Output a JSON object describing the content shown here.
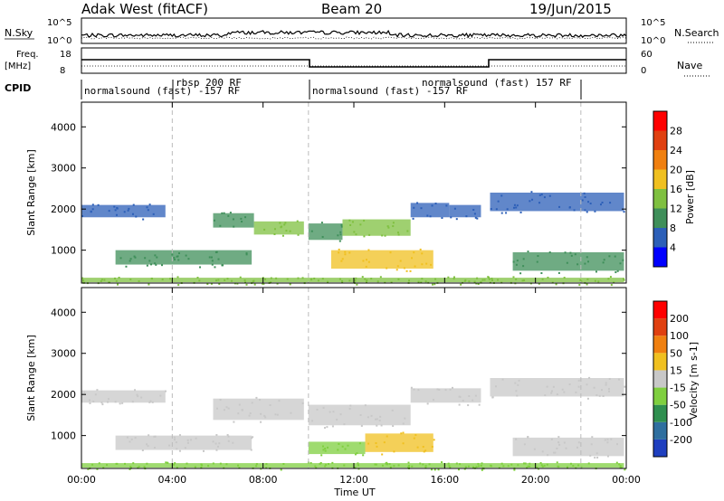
{
  "header": {
    "radar": "Adak West (fitACF)",
    "beam": "Beam 20",
    "date": "19/Jun/2015"
  },
  "strips": {
    "nsky_label": "N.Sky",
    "nsky_ticks": [
      "10^5",
      "10^0"
    ],
    "nsearch_label": "N.Search",
    "freq_label_1": "Freq.",
    "freq_label_2": "[MHz]",
    "freq_ticks": [
      "18",
      "8"
    ],
    "nave_ticks": [
      "60",
      "0"
    ],
    "nave_label": "Nave",
    "cpid_label": "CPID"
  },
  "cpid_labels": [
    "normalsound (fast) -157 RF",
    "rbsp 200 RF",
    "normalsound (fast) -157 RF",
    "normalsound (fast) 157 RF"
  ],
  "chart_data": [
    {
      "type": "heatmap",
      "name": "power",
      "ylabel": "Slant Range [km]",
      "xlabel": "Time UT",
      "xticks": [
        "00:00",
        "04:00",
        "08:00",
        "12:00",
        "16:00",
        "20:00",
        "00:00"
      ],
      "yticks": [
        1000,
        2000,
        3000,
        4000
      ],
      "ylim": [
        200,
        4600
      ],
      "colorbar_label": "Power [dB]",
      "colorbar_ticks": [
        "4",
        "8",
        "12",
        "16",
        "20",
        "24",
        "28"
      ],
      "colorbar_colors": [
        "#0000ff",
        "#2c5fb8",
        "#3f8f5a",
        "#7fc040",
        "#f0c020",
        "#f08010",
        "#e04010",
        "#ff0000"
      ],
      "bands": [
        {
          "t0": 0.0,
          "t1": 3.7,
          "r0": 1800,
          "r1": 2100,
          "color": "#2c5fb8"
        },
        {
          "t0": 5.8,
          "t1": 7.6,
          "r0": 1550,
          "r1": 1900,
          "color": "#3f8f5a"
        },
        {
          "t0": 7.6,
          "t1": 9.8,
          "r0": 1380,
          "r1": 1700,
          "color": "#7fc040"
        },
        {
          "t0": 10.0,
          "t1": 11.5,
          "r0": 1250,
          "r1": 1650,
          "color": "#3f8f5a"
        },
        {
          "t0": 11.5,
          "t1": 14.5,
          "r0": 1350,
          "r1": 1750,
          "color": "#7fc040"
        },
        {
          "t0": 14.5,
          "t1": 16.2,
          "r0": 1800,
          "r1": 2150,
          "color": "#2c5fb8"
        },
        {
          "t0": 16.2,
          "t1": 17.6,
          "r0": 1800,
          "r1": 2100,
          "color": "#2c5fb8"
        },
        {
          "t0": 18.0,
          "t1": 23.9,
          "r0": 1950,
          "r1": 2400,
          "color": "#2c5fb8"
        },
        {
          "t0": 1.5,
          "t1": 7.5,
          "r0": 650,
          "r1": 1000,
          "color": "#3f8f5a"
        },
        {
          "t0": 11.0,
          "t1": 15.5,
          "r0": 550,
          "r1": 1000,
          "color": "#f0c020"
        },
        {
          "t0": 19.0,
          "t1": 23.9,
          "r0": 500,
          "r1": 950,
          "color": "#3f8f5a"
        },
        {
          "t0": 0.0,
          "t1": 23.9,
          "r0": 220,
          "r1": 330,
          "color": "#7fc040"
        }
      ]
    },
    {
      "type": "heatmap",
      "name": "velocity",
      "ylabel": "Slant Range [km]",
      "xlabel": "Time UT",
      "xticks": [
        "00:00",
        "04:00",
        "08:00",
        "12:00",
        "16:00",
        "20:00",
        "00:00"
      ],
      "yticks": [
        1000,
        2000,
        3000,
        4000
      ],
      "ylim": [
        200,
        4600
      ],
      "colorbar_label": "Velocity [m s-1]",
      "colorbar_ticks": [
        "200",
        "100",
        "50",
        "15",
        "-15",
        "-50",
        "-100",
        "-200"
      ],
      "colorbar_colors": [
        "#1f3fbf",
        "#2f6f9f",
        "#2f8f4f",
        "#7fcf3f",
        "#c8c8c8",
        "#f0c020",
        "#f08010",
        "#e04010",
        "#ff0000"
      ],
      "bands": [
        {
          "t0": 0.0,
          "t1": 3.7,
          "r0": 1800,
          "r1": 2100,
          "color": "#c8c8c8"
        },
        {
          "t0": 5.8,
          "t1": 9.8,
          "r0": 1380,
          "r1": 1900,
          "color": "#c8c8c8"
        },
        {
          "t0": 10.0,
          "t1": 14.5,
          "r0": 1250,
          "r1": 1750,
          "color": "#c8c8c8"
        },
        {
          "t0": 14.5,
          "t1": 17.6,
          "r0": 1800,
          "r1": 2150,
          "color": "#c8c8c8"
        },
        {
          "t0": 18.0,
          "t1": 23.9,
          "r0": 1950,
          "r1": 2400,
          "color": "#c8c8c8"
        },
        {
          "t0": 1.5,
          "t1": 7.5,
          "r0": 650,
          "r1": 1000,
          "color": "#c8c8c8"
        },
        {
          "t0": 10.0,
          "t1": 12.5,
          "r0": 550,
          "r1": 850,
          "color": "#7fcf3f"
        },
        {
          "t0": 12.5,
          "t1": 15.5,
          "r0": 600,
          "r1": 1050,
          "color": "#f0c020"
        },
        {
          "t0": 19.0,
          "t1": 23.9,
          "r0": 500,
          "r1": 950,
          "color": "#c8c8c8"
        },
        {
          "t0": 0.0,
          "t1": 23.9,
          "r0": 220,
          "r1": 330,
          "color": "#7fcf3f"
        }
      ]
    }
  ]
}
